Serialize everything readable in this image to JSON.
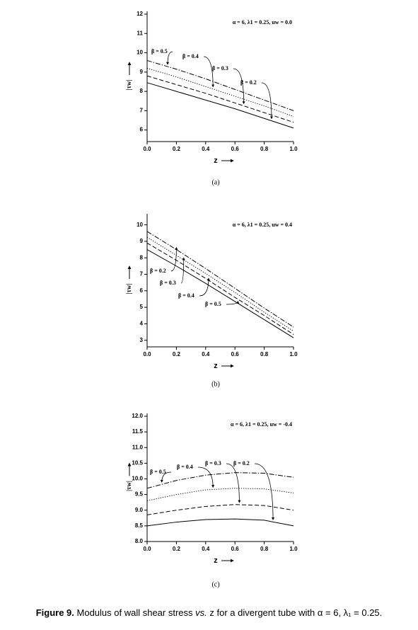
{
  "chart_data": [
    {
      "type": "line",
      "panel_label": "(a)",
      "annotation": "α = 6, λ1 = 0.25, uw = 0.0",
      "x_label": "z",
      "y_label": "|τw|",
      "x": [
        0,
        0.2,
        0.4,
        0.6,
        0.8,
        1.0
      ],
      "xlim": [
        0,
        1.0
      ],
      "xticks": [
        {
          "value": 0,
          "label": "0.0"
        },
        {
          "value": 0.2,
          "label": "0.2"
        },
        {
          "value": 0.4,
          "label": "0.4"
        },
        {
          "value": 0.6,
          "label": "0.6"
        },
        {
          "value": 0.8,
          "label": "0.8"
        },
        {
          "value": 1.0,
          "label": "1.0"
        }
      ],
      "ylim": [
        5.4,
        12
      ],
      "yticks": [
        6,
        7,
        8,
        9,
        10,
        11,
        12
      ],
      "series": [
        {
          "name": "β = 0.5",
          "color": "#000000",
          "style": "dashdot",
          "values": [
            9.6,
            9.15,
            8.65,
            8.1,
            7.55,
            7.0
          ]
        },
        {
          "name": "β = 0.4",
          "color": "#000000",
          "style": "dotted",
          "values": [
            9.2,
            8.75,
            8.25,
            7.75,
            7.25,
            6.7
          ]
        },
        {
          "name": "β = 0.3",
          "color": "#000000",
          "style": "dashed",
          "values": [
            8.8,
            8.35,
            7.9,
            7.4,
            6.9,
            6.4
          ]
        },
        {
          "name": "β = 0.2",
          "color": "#000000",
          "style": "solid",
          "values": [
            8.45,
            8.0,
            7.55,
            7.1,
            6.6,
            6.1
          ]
        }
      ]
    },
    {
      "type": "line",
      "panel_label": "(b)",
      "annotation": "α = 6, λ1 = 0.25, uw = 0.4",
      "x_label": "z",
      "y_label": "|τw|",
      "x": [
        0,
        0.2,
        0.4,
        0.6,
        0.8,
        1.0
      ],
      "xlim": [
        0,
        1.0
      ],
      "xticks": [
        {
          "value": 0,
          "label": "0.0"
        },
        {
          "value": 0.2,
          "label": "0.2"
        },
        {
          "value": 0.4,
          "label": "0.4"
        },
        {
          "value": 0.6,
          "label": "0.6"
        },
        {
          "value": 0.8,
          "label": "0.8"
        },
        {
          "value": 1.0,
          "label": "1.0"
        }
      ],
      "ylim": [
        2.6,
        10.5
      ],
      "yticks": [
        3,
        4,
        5,
        6,
        7,
        8,
        9,
        10
      ],
      "series": [
        {
          "name": "β = 0.2",
          "color": "#000000",
          "style": "dashdot",
          "values": [
            9.6,
            8.5,
            7.35,
            6.15,
            4.95,
            3.8
          ]
        },
        {
          "name": "β = 0.3",
          "color": "#000000",
          "style": "dotted",
          "values": [
            9.25,
            8.15,
            7.05,
            5.9,
            4.7,
            3.55
          ]
        },
        {
          "name": "β = 0.4",
          "color": "#000000",
          "style": "dashed",
          "values": [
            8.9,
            7.85,
            6.75,
            5.6,
            4.5,
            3.35
          ]
        },
        {
          "name": "β = 0.5",
          "color": "#000000",
          "style": "solid",
          "values": [
            8.5,
            7.5,
            6.45,
            5.35,
            4.25,
            3.15
          ]
        }
      ]
    },
    {
      "type": "line",
      "panel_label": "(c)",
      "annotation": "α = 6, λ1 = 0.25, uw = -0.4",
      "x_label": "z",
      "y_label": "|τw|",
      "x": [
        0,
        0.2,
        0.4,
        0.6,
        0.8,
        1.0
      ],
      "xlim": [
        0,
        1.0
      ],
      "xticks": [
        {
          "value": 0,
          "label": "0.0"
        },
        {
          "value": 0.2,
          "label": "0.2"
        },
        {
          "value": 0.4,
          "label": "0.4"
        },
        {
          "value": 0.6,
          "label": "0.6"
        },
        {
          "value": 0.8,
          "label": "0.8"
        },
        {
          "value": 1.0,
          "label": "1.0"
        }
      ],
      "ylim": [
        8.0,
        12.0
      ],
      "yticks": [
        {
          "value": 8.0,
          "label": "8.0"
        },
        {
          "value": 8.5,
          "label": "8.5"
        },
        {
          "value": 9.0,
          "label": "9.0"
        },
        {
          "value": 9.5,
          "label": "9.5"
        },
        {
          "value": 10.0,
          "label": "10.0"
        },
        {
          "value": 10.5,
          "label": "10.5"
        },
        {
          "value": 11.0,
          "label": "11.0"
        },
        {
          "value": 11.5,
          "label": "11.5"
        },
        {
          "value": 12.0,
          "label": "12.0"
        }
      ],
      "series": [
        {
          "name": "β = 0.5",
          "color": "#000000",
          "style": "dashdot",
          "values": [
            9.7,
            9.95,
            10.12,
            10.2,
            10.18,
            10.05
          ]
        },
        {
          "name": "β = 0.4",
          "color": "#000000",
          "style": "dotted",
          "values": [
            9.3,
            9.5,
            9.65,
            9.7,
            9.68,
            9.55
          ]
        },
        {
          "name": "β = 0.3",
          "color": "#000000",
          "style": "dashed",
          "values": [
            8.85,
            9.0,
            9.12,
            9.18,
            9.15,
            9.0
          ]
        },
        {
          "name": "β = 0.2",
          "color": "#000000",
          "style": "solid",
          "values": [
            8.5,
            8.62,
            8.7,
            8.72,
            8.68,
            8.5
          ]
        }
      ]
    }
  ],
  "caption": {
    "label": "Figure 9.",
    "text_before": "Modulus of wall shear stress",
    "emphasis": "vs.",
    "text_after": "z for a divergent tube with α = 6, λ₁ = 0.25."
  }
}
